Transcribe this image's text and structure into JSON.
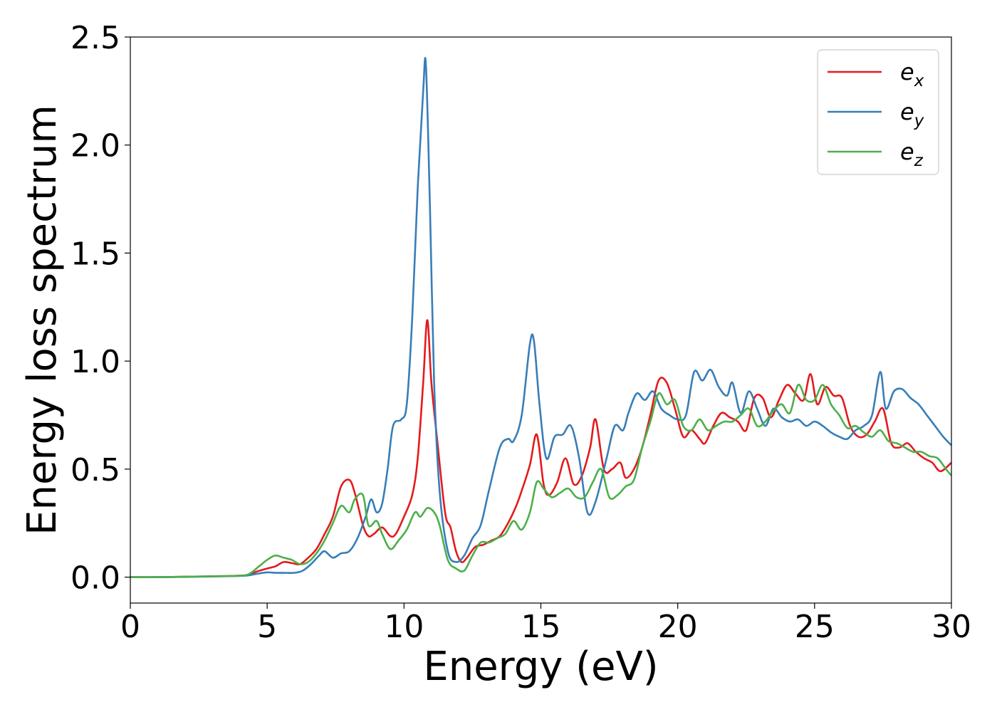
{
  "chart_data": {
    "type": "line",
    "xlabel": "Energy (eV)",
    "ylabel": "Energy loss spectrum",
    "xlim": [
      0,
      30
    ],
    "ylim": [
      -0.12,
      2.5
    ],
    "xticks": [
      0,
      5,
      10,
      15,
      20,
      25,
      30
    ],
    "yticks": [
      0.0,
      0.5,
      1.0,
      1.5,
      2.0,
      2.5
    ],
    "xtick_labels": [
      "0",
      "5",
      "10",
      "15",
      "20",
      "25",
      "30"
    ],
    "ytick_labels": [
      "0.0",
      "0.5",
      "1.0",
      "1.5",
      "2.0",
      "2.5"
    ],
    "grid": false,
    "legend_position": "top-right",
    "series": [
      {
        "name": "e",
        "subscript": "x",
        "color": "#e41a1c",
        "x": [
          0,
          1,
          2,
          3,
          3.8,
          4.3,
          4.6,
          5.0,
          5.3,
          5.6,
          5.9,
          6.2,
          6.5,
          6.8,
          7.1,
          7.4,
          7.7,
          8.0,
          8.2,
          8.5,
          8.7,
          8.9,
          9.2,
          9.5,
          9.7,
          10.0,
          10.3,
          10.5,
          10.7,
          10.85,
          11.0,
          11.2,
          11.5,
          11.7,
          11.9,
          12.1,
          12.3,
          12.6,
          12.9,
          13.2,
          13.5,
          13.8,
          14.1,
          14.3,
          14.6,
          14.85,
          15.1,
          15.3,
          15.6,
          15.9,
          16.2,
          16.5,
          16.8,
          17.0,
          17.3,
          17.6,
          17.9,
          18.1,
          18.4,
          18.7,
          19.0,
          19.3,
          19.6,
          19.9,
          20.2,
          20.5,
          20.8,
          21.0,
          21.3,
          21.6,
          21.9,
          22.2,
          22.5,
          22.8,
          23.1,
          23.4,
          23.7,
          24.0,
          24.3,
          24.6,
          24.85,
          25.1,
          25.4,
          25.7,
          26.0,
          26.3,
          26.6,
          26.9,
          27.2,
          27.5,
          27.8,
          28.1,
          28.4,
          28.7,
          29.0,
          29.3,
          29.6,
          30.0
        ],
        "values": [
          0.0,
          0.0,
          0.002,
          0.004,
          0.006,
          0.01,
          0.025,
          0.04,
          0.05,
          0.07,
          0.065,
          0.06,
          0.09,
          0.13,
          0.2,
          0.28,
          0.42,
          0.45,
          0.39,
          0.24,
          0.19,
          0.2,
          0.23,
          0.19,
          0.2,
          0.28,
          0.38,
          0.55,
          0.9,
          1.19,
          0.9,
          0.65,
          0.3,
          0.23,
          0.12,
          0.07,
          0.09,
          0.14,
          0.15,
          0.17,
          0.19,
          0.25,
          0.33,
          0.4,
          0.52,
          0.66,
          0.43,
          0.38,
          0.44,
          0.55,
          0.43,
          0.47,
          0.6,
          0.73,
          0.5,
          0.5,
          0.53,
          0.46,
          0.5,
          0.6,
          0.75,
          0.91,
          0.9,
          0.78,
          0.65,
          0.68,
          0.64,
          0.62,
          0.7,
          0.76,
          0.74,
          0.72,
          0.68,
          0.83,
          0.83,
          0.74,
          0.82,
          0.89,
          0.85,
          0.82,
          0.94,
          0.8,
          0.88,
          0.84,
          0.83,
          0.7,
          0.65,
          0.66,
          0.72,
          0.78,
          0.62,
          0.6,
          0.62,
          0.58,
          0.55,
          0.53,
          0.49,
          0.53
        ]
      },
      {
        "name": "e",
        "subscript": "y",
        "color": "#377eb8",
        "x": [
          0,
          1,
          2,
          3,
          3.8,
          4.3,
          4.6,
          5.0,
          5.3,
          5.6,
          6.0,
          6.3,
          6.6,
          6.9,
          7.1,
          7.4,
          7.7,
          8.0,
          8.3,
          8.6,
          8.8,
          9.0,
          9.2,
          9.4,
          9.6,
          9.9,
          10.1,
          10.3,
          10.5,
          10.7,
          10.8,
          10.95,
          11.1,
          11.3,
          11.6,
          11.9,
          12.2,
          12.5,
          12.8,
          13.1,
          13.5,
          13.8,
          14.0,
          14.3,
          14.6,
          14.75,
          14.95,
          15.2,
          15.5,
          15.8,
          16.1,
          16.4,
          16.7,
          17.0,
          17.4,
          17.7,
          18.0,
          18.2,
          18.5,
          18.8,
          19.1,
          19.4,
          19.7,
          20.0,
          20.3,
          20.6,
          20.9,
          21.2,
          21.5,
          21.8,
          22.0,
          22.3,
          22.6,
          22.9,
          23.2,
          23.5,
          23.8,
          24.1,
          24.4,
          24.7,
          25.0,
          25.3,
          25.6,
          25.9,
          26.2,
          26.5,
          26.8,
          27.1,
          27.4,
          27.6,
          27.9,
          28.2,
          28.5,
          28.8,
          29.1,
          29.4,
          29.7,
          30.0
        ],
        "values": [
          0.0,
          0.0,
          0.001,
          0.003,
          0.005,
          0.008,
          0.015,
          0.022,
          0.02,
          0.02,
          0.02,
          0.03,
          0.06,
          0.1,
          0.12,
          0.09,
          0.11,
          0.12,
          0.18,
          0.28,
          0.36,
          0.3,
          0.34,
          0.5,
          0.7,
          0.73,
          0.8,
          1.2,
          1.8,
          2.25,
          2.37,
          1.7,
          0.9,
          0.4,
          0.12,
          0.07,
          0.1,
          0.18,
          0.24,
          0.4,
          0.6,
          0.64,
          0.63,
          0.75,
          1.08,
          1.09,
          0.8,
          0.55,
          0.65,
          0.66,
          0.7,
          0.55,
          0.3,
          0.35,
          0.55,
          0.7,
          0.68,
          0.76,
          0.85,
          0.82,
          0.86,
          0.78,
          0.75,
          0.73,
          0.75,
          0.95,
          0.91,
          0.96,
          0.88,
          0.84,
          0.9,
          0.76,
          0.86,
          0.78,
          0.7,
          0.78,
          0.74,
          0.72,
          0.73,
          0.7,
          0.72,
          0.7,
          0.67,
          0.65,
          0.64,
          0.68,
          0.7,
          0.75,
          0.95,
          0.78,
          0.86,
          0.87,
          0.83,
          0.8,
          0.75,
          0.7,
          0.65,
          0.61
        ]
      },
      {
        "name": "e",
        "subscript": "z",
        "color": "#4daf4a",
        "x": [
          0,
          1,
          2,
          3,
          3.8,
          4.3,
          4.7,
          5.0,
          5.3,
          5.6,
          5.9,
          6.2,
          6.5,
          6.8,
          7.1,
          7.4,
          7.7,
          8.0,
          8.2,
          8.5,
          8.7,
          9.0,
          9.2,
          9.5,
          9.8,
          10.1,
          10.4,
          10.6,
          10.85,
          11.1,
          11.3,
          11.6,
          11.9,
          12.2,
          12.5,
          12.8,
          13.1,
          13.4,
          13.7,
          14.0,
          14.3,
          14.6,
          14.85,
          15.1,
          15.4,
          15.7,
          16.0,
          16.3,
          16.6,
          16.9,
          17.2,
          17.5,
          17.8,
          18.1,
          18.4,
          18.7,
          19.0,
          19.3,
          19.6,
          19.9,
          20.2,
          20.5,
          20.8,
          21.1,
          21.4,
          21.7,
          22.0,
          22.3,
          22.6,
          22.9,
          23.2,
          23.5,
          23.8,
          24.1,
          24.4,
          24.7,
          25.0,
          25.3,
          25.6,
          25.9,
          26.2,
          26.5,
          26.8,
          27.1,
          27.4,
          27.7,
          28.0,
          28.3,
          28.6,
          28.9,
          29.2,
          29.5,
          29.8,
          30.0
        ],
        "values": [
          0.0,
          0.0,
          0.002,
          0.004,
          0.006,
          0.012,
          0.05,
          0.08,
          0.1,
          0.09,
          0.08,
          0.06,
          0.07,
          0.11,
          0.17,
          0.25,
          0.33,
          0.3,
          0.36,
          0.38,
          0.24,
          0.26,
          0.2,
          0.13,
          0.17,
          0.22,
          0.3,
          0.28,
          0.32,
          0.3,
          0.24,
          0.08,
          0.04,
          0.03,
          0.1,
          0.16,
          0.16,
          0.18,
          0.2,
          0.26,
          0.22,
          0.3,
          0.44,
          0.41,
          0.37,
          0.39,
          0.41,
          0.37,
          0.37,
          0.44,
          0.5,
          0.37,
          0.38,
          0.42,
          0.45,
          0.6,
          0.72,
          0.85,
          0.8,
          0.82,
          0.7,
          0.68,
          0.73,
          0.68,
          0.7,
          0.72,
          0.72,
          0.75,
          0.78,
          0.7,
          0.72,
          0.77,
          0.8,
          0.76,
          0.89,
          0.82,
          0.82,
          0.89,
          0.8,
          0.75,
          0.69,
          0.7,
          0.67,
          0.65,
          0.68,
          0.63,
          0.62,
          0.6,
          0.58,
          0.58,
          0.56,
          0.55,
          0.5,
          0.47
        ]
      }
    ]
  }
}
